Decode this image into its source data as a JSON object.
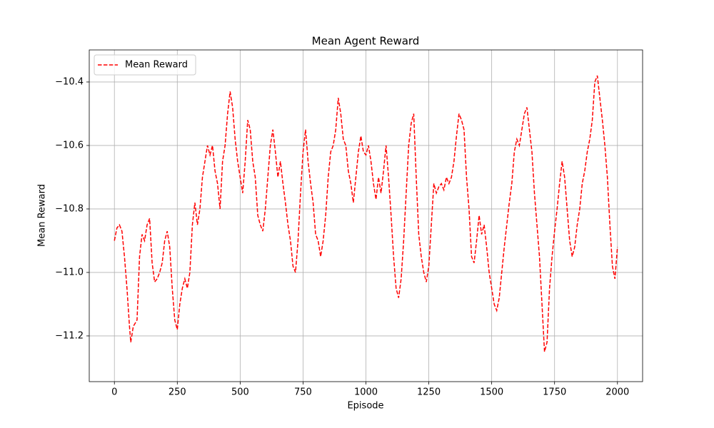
{
  "chart_data": {
    "type": "line",
    "title": "Mean Agent Reward",
    "x_label": "Episode",
    "y_label": "Mean Reward",
    "x": [
      0,
      10,
      20,
      30,
      40,
      50,
      60,
      65,
      75,
      90,
      100,
      110,
      120,
      130,
      140,
      150,
      160,
      170,
      180,
      190,
      200,
      210,
      220,
      230,
      240,
      250,
      260,
      270,
      280,
      290,
      300,
      310,
      320,
      330,
      340,
      350,
      360,
      370,
      380,
      390,
      400,
      410,
      420,
      430,
      440,
      450,
      460,
      470,
      480,
      490,
      500,
      510,
      520,
      530,
      540,
      550,
      560,
      570,
      580,
      590,
      600,
      610,
      620,
      630,
      640,
      650,
      660,
      670,
      680,
      690,
      700,
      710,
      720,
      730,
      740,
      750,
      760,
      770,
      780,
      790,
      800,
      810,
      820,
      830,
      840,
      850,
      860,
      870,
      880,
      890,
      900,
      910,
      920,
      930,
      940,
      950,
      960,
      970,
      980,
      990,
      1000,
      1010,
      1020,
      1030,
      1040,
      1050,
      1060,
      1070,
      1080,
      1090,
      1100,
      1110,
      1120,
      1130,
      1140,
      1150,
      1160,
      1170,
      1180,
      1190,
      1200,
      1210,
      1220,
      1230,
      1240,
      1250,
      1260,
      1270,
      1280,
      1290,
      1300,
      1310,
      1320,
      1330,
      1340,
      1350,
      1360,
      1370,
      1380,
      1390,
      1400,
      1410,
      1420,
      1430,
      1440,
      1450,
      1460,
      1470,
      1480,
      1490,
      1500,
      1510,
      1520,
      1530,
      1540,
      1550,
      1560,
      1570,
      1580,
      1590,
      1600,
      1610,
      1620,
      1630,
      1640,
      1650,
      1660,
      1670,
      1680,
      1690,
      1700,
      1710,
      1720,
      1730,
      1740,
      1750,
      1760,
      1770,
      1780,
      1790,
      1800,
      1810,
      1820,
      1830,
      1840,
      1850,
      1860,
      1870,
      1880,
      1890,
      1900,
      1910,
      1920,
      1930,
      1940,
      1950,
      1960,
      1970,
      1980,
      1990,
      2000
    ],
    "series": [
      {
        "name": "Mean Reward",
        "color": "#ff0000",
        "dashed": true,
        "values": [
          -10.9,
          -10.86,
          -10.85,
          -10.87,
          -10.95,
          -11.05,
          -11.17,
          -11.22,
          -11.17,
          -11.15,
          -10.95,
          -10.88,
          -10.9,
          -10.85,
          -10.83,
          -10.97,
          -11.03,
          -11.02,
          -11.0,
          -10.97,
          -10.9,
          -10.87,
          -10.92,
          -11.05,
          -11.15,
          -11.18,
          -11.1,
          -11.05,
          -11.02,
          -11.05,
          -11.0,
          -10.85,
          -10.78,
          -10.85,
          -10.8,
          -10.7,
          -10.65,
          -10.6,
          -10.63,
          -10.6,
          -10.68,
          -10.72,
          -10.8,
          -10.65,
          -10.6,
          -10.5,
          -10.43,
          -10.48,
          -10.58,
          -10.65,
          -10.7,
          -10.75,
          -10.65,
          -10.52,
          -10.55,
          -10.65,
          -10.7,
          -10.82,
          -10.85,
          -10.87,
          -10.8,
          -10.7,
          -10.6,
          -10.55,
          -10.62,
          -10.7,
          -10.65,
          -10.72,
          -10.78,
          -10.85,
          -10.9,
          -10.98,
          -11.0,
          -10.9,
          -10.75,
          -10.62,
          -10.55,
          -10.65,
          -10.72,
          -10.78,
          -10.88,
          -10.9,
          -10.95,
          -10.9,
          -10.82,
          -10.7,
          -10.62,
          -10.6,
          -10.55,
          -10.45,
          -10.5,
          -10.58,
          -10.6,
          -10.68,
          -10.72,
          -10.78,
          -10.7,
          -10.62,
          -10.57,
          -10.62,
          -10.63,
          -10.6,
          -10.65,
          -10.72,
          -10.77,
          -10.7,
          -10.75,
          -10.68,
          -10.6,
          -10.7,
          -10.82,
          -10.95,
          -11.05,
          -11.08,
          -11.02,
          -10.9,
          -10.75,
          -10.6,
          -10.53,
          -10.5,
          -10.7,
          -10.88,
          -10.95,
          -11.0,
          -11.03,
          -10.98,
          -10.85,
          -10.72,
          -10.75,
          -10.73,
          -10.72,
          -10.74,
          -10.7,
          -10.72,
          -10.7,
          -10.65,
          -10.57,
          -10.5,
          -10.52,
          -10.55,
          -10.7,
          -10.8,
          -10.95,
          -10.97,
          -10.9,
          -10.82,
          -10.88,
          -10.85,
          -10.92,
          -11.0,
          -11.05,
          -11.1,
          -11.12,
          -11.08,
          -11.0,
          -10.92,
          -10.85,
          -10.78,
          -10.72,
          -10.62,
          -10.58,
          -10.6,
          -10.55,
          -10.5,
          -10.48,
          -10.55,
          -10.62,
          -10.75,
          -10.85,
          -10.95,
          -11.1,
          -11.25,
          -11.22,
          -11.05,
          -10.95,
          -10.87,
          -10.8,
          -10.72,
          -10.65,
          -10.7,
          -10.8,
          -10.9,
          -10.95,
          -10.92,
          -10.85,
          -10.8,
          -10.72,
          -10.68,
          -10.62,
          -10.58,
          -10.52,
          -10.4,
          -10.38,
          -10.45,
          -10.52,
          -10.6,
          -10.7,
          -10.85,
          -10.98,
          -11.02,
          -10.92
        ]
      }
    ],
    "xlim": [
      -100,
      2100
    ],
    "xticks": [
      0,
      250,
      500,
      750,
      1000,
      1250,
      1500,
      1750,
      2000
    ],
    "ylim": [
      -11.344,
      -10.299
    ],
    "yticks": [
      {
        "value": -11.2,
        "label": "−11.2"
      },
      {
        "value": -11.0,
        "label": "−11.0"
      },
      {
        "value": -10.8,
        "label": "−10.8"
      },
      {
        "value": -10.6,
        "label": "−10.6"
      },
      {
        "value": -10.4,
        "label": "−10.4"
      }
    ],
    "grid": true,
    "legend": "upper left"
  }
}
